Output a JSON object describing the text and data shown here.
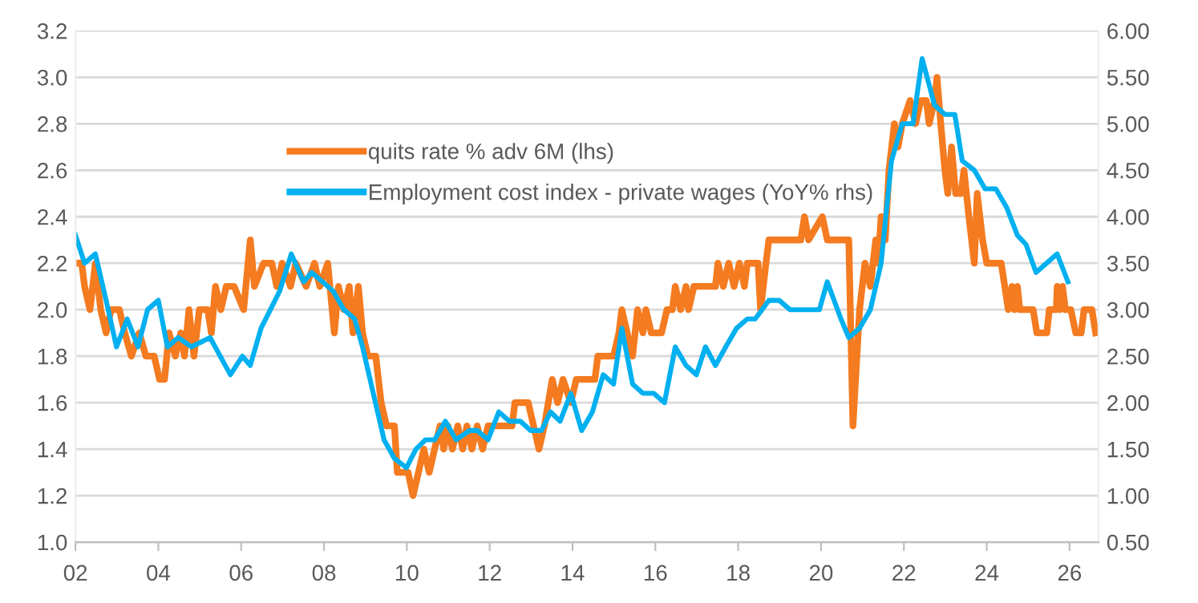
{
  "chart_data": {
    "type": "line",
    "xlim": [
      2002,
      2026.7
    ],
    "xticks": [
      {
        "value": 2002,
        "label": "02"
      },
      {
        "value": 2004,
        "label": "04"
      },
      {
        "value": 2006,
        "label": "06"
      },
      {
        "value": 2008,
        "label": "08"
      },
      {
        "value": 2010,
        "label": "10"
      },
      {
        "value": 2012,
        "label": "12"
      },
      {
        "value": 2014,
        "label": "14"
      },
      {
        "value": 2016,
        "label": "16"
      },
      {
        "value": 2018,
        "label": "18"
      },
      {
        "value": 2020,
        "label": "20"
      },
      {
        "value": 2022,
        "label": "22"
      },
      {
        "value": 2024,
        "label": "24"
      },
      {
        "value": 2026,
        "label": "26"
      }
    ],
    "ylim": [
      1.0,
      3.2
    ],
    "yticks": [
      {
        "value": 1.0,
        "label": "1.0"
      },
      1.2,
      1.4,
      1.6,
      1.8,
      {
        "value": 2.0,
        "label": "2.0"
      },
      2.2,
      2.4,
      2.6,
      2.8,
      {
        "value": 3.0,
        "label": "3.0"
      },
      3.2
    ],
    "y2lim": [
      0.5,
      6.0
    ],
    "y2ticks": [
      {
        "value": 0.5,
        "label": "0.50"
      },
      {
        "value": 1.0,
        "label": "1.00"
      },
      {
        "value": 1.5,
        "label": "1.50"
      },
      {
        "value": 2.0,
        "label": "2.00"
      },
      {
        "value": 2.5,
        "label": "2.50"
      },
      {
        "value": 3.0,
        "label": "3.00"
      },
      {
        "value": 3.5,
        "label": "3.50"
      },
      {
        "value": 4.0,
        "label": "4.00"
      },
      {
        "value": 4.5,
        "label": "4.50"
      },
      {
        "value": 5.0,
        "label": "5.00"
      },
      {
        "value": 5.5,
        "label": "5.50"
      },
      {
        "value": 6.0,
        "label": "6.00"
      }
    ],
    "grid": "y",
    "legend": "top",
    "series": [
      {
        "name": "quits rate % adv 6M (lhs)",
        "color": "#f47b20",
        "x": [
          2002.0,
          2002.15,
          2002.22,
          2002.35,
          2002.48,
          2002.61,
          2002.74,
          2002.86,
          2003.06,
          2003.19,
          2003.35,
          2003.54,
          2003.7,
          2003.9,
          2004.03,
          2004.15,
          2004.26,
          2004.41,
          2004.54,
          2004.63,
          2004.74,
          2004.86,
          2004.99,
          2005.19,
          2005.28,
          2005.38,
          2005.51,
          2005.64,
          2005.83,
          2006.06,
          2006.22,
          2006.32,
          2006.54,
          2006.74,
          2006.86,
          2006.99,
          2007.19,
          2007.32,
          2007.57,
          2007.77,
          2007.9,
          2008.09,
          2008.25,
          2008.35,
          2008.48,
          2008.61,
          2008.7,
          2008.83,
          2008.93,
          2009.06,
          2009.25,
          2009.38,
          2009.51,
          2009.7,
          2009.77,
          2010.03,
          2010.15,
          2010.28,
          2010.41,
          2010.54,
          2010.67,
          2010.8,
          2010.89,
          2010.99,
          2011.1,
          2011.23,
          2011.35,
          2011.45,
          2011.57,
          2011.7,
          2011.83,
          2011.96,
          2012.54,
          2012.61,
          2012.93,
          2013.06,
          2013.19,
          2013.32,
          2013.51,
          2013.64,
          2013.77,
          2013.96,
          2014.09,
          2014.54,
          2014.61,
          2014.86,
          2014.99,
          2015.12,
          2015.19,
          2015.45,
          2015.57,
          2015.7,
          2015.77,
          2015.9,
          2016.15,
          2016.28,
          2016.41,
          2016.48,
          2016.61,
          2016.74,
          2016.8,
          2016.93,
          2017.45,
          2017.51,
          2017.64,
          2017.77,
          2017.9,
          2018.03,
          2018.15,
          2018.22,
          2018.48,
          2018.54,
          2018.67,
          2018.74,
          2019.51,
          2019.6,
          2019.7,
          2020.03,
          2020.15,
          2020.67,
          2020.77,
          2020.93,
          2021.06,
          2021.19,
          2021.32,
          2021.38,
          2021.45,
          2021.55,
          2021.64,
          2021.77,
          2021.86,
          2021.96,
          2022.15,
          2022.28,
          2022.41,
          2022.54,
          2022.61,
          2022.74,
          2022.8,
          2022.89,
          2022.99,
          2023.06,
          2023.15,
          2023.25,
          2023.38,
          2023.45,
          2023.57,
          2023.7,
          2023.77,
          2023.9,
          2024.0,
          2024.35,
          2024.52,
          2024.61,
          2024.67,
          2024.74,
          2024.8,
          2025.12,
          2025.21,
          2025.45,
          2025.51,
          2025.68,
          2025.7,
          2025.77,
          2025.83,
          2025.9,
          2026.03,
          2026.15,
          2026.28,
          2026.35,
          2026.54,
          2026.63
        ],
        "values": [
          2.2,
          2.2,
          2.1,
          2.0,
          2.2,
          2.0,
          1.9,
          2.0,
          2.0,
          1.9,
          1.8,
          1.9,
          1.8,
          1.8,
          1.7,
          1.7,
          1.9,
          1.8,
          1.9,
          1.8,
          2.0,
          1.8,
          2.0,
          2.0,
          1.9,
          2.1,
          2.0,
          2.1,
          2.1,
          2.0,
          2.3,
          2.1,
          2.2,
          2.2,
          2.1,
          2.2,
          2.1,
          2.2,
          2.1,
          2.2,
          2.1,
          2.2,
          1.9,
          2.1,
          2.0,
          2.1,
          1.9,
          2.1,
          1.9,
          1.8,
          1.8,
          1.6,
          1.5,
          1.5,
          1.3,
          1.3,
          1.2,
          1.3,
          1.4,
          1.3,
          1.4,
          1.5,
          1.4,
          1.5,
          1.4,
          1.5,
          1.4,
          1.5,
          1.4,
          1.5,
          1.4,
          1.5,
          1.5,
          1.6,
          1.6,
          1.5,
          1.4,
          1.5,
          1.7,
          1.6,
          1.7,
          1.6,
          1.7,
          1.7,
          1.8,
          1.8,
          1.8,
          1.9,
          2.0,
          1.8,
          2.0,
          1.9,
          2.0,
          1.9,
          1.9,
          2.0,
          2.0,
          2.1,
          2.0,
          2.1,
          2.0,
          2.1,
          2.1,
          2.2,
          2.1,
          2.2,
          2.1,
          2.2,
          2.1,
          2.2,
          2.2,
          2.0,
          2.2,
          2.3,
          2.3,
          2.4,
          2.3,
          2.4,
          2.3,
          2.3,
          1.5,
          2.0,
          2.2,
          2.1,
          2.3,
          2.2,
          2.4,
          2.3,
          2.6,
          2.8,
          2.7,
          2.8,
          2.9,
          2.8,
          2.9,
          2.9,
          2.8,
          2.9,
          3.0,
          2.8,
          2.6,
          2.5,
          2.7,
          2.5,
          2.5,
          2.6,
          2.4,
          2.2,
          2.5,
          2.3,
          2.2,
          2.2,
          2.0,
          2.1,
          2.0,
          2.1,
          2.0,
          2.0,
          1.9,
          1.9,
          2.0,
          2.0,
          2.1,
          2.0,
          2.1,
          2.0,
          2.0,
          1.9,
          1.9,
          2.0,
          2.0,
          1.9
        ]
      },
      {
        "name": "Employment cost index - private wages (YoY% rhs)",
        "color": "#00b0f0",
        "axis": "y2",
        "x": [
          2002.0,
          2002.22,
          2002.48,
          2002.74,
          2002.99,
          2003.25,
          2003.51,
          2003.74,
          2004.0,
          2004.22,
          2004.48,
          2004.8,
          2005.25,
          2005.74,
          2006.03,
          2006.22,
          2006.48,
          2006.93,
          2007.21,
          2007.51,
          2007.7,
          2007.96,
          2008.22,
          2008.48,
          2008.74,
          2008.93,
          2009.19,
          2009.45,
          2009.7,
          2009.99,
          2010.22,
          2010.45,
          2010.67,
          2010.93,
          2011.19,
          2011.51,
          2011.7,
          2011.96,
          2012.22,
          2012.48,
          2012.74,
          2012.99,
          2013.25,
          2013.47,
          2013.7,
          2013.96,
          2014.22,
          2014.48,
          2014.74,
          2014.99,
          2015.19,
          2015.45,
          2015.7,
          2015.96,
          2016.22,
          2016.48,
          2016.74,
          2016.99,
          2017.21,
          2017.45,
          2017.7,
          2017.96,
          2018.22,
          2018.41,
          2018.74,
          2018.99,
          2019.25,
          2019.96,
          2020.15,
          2020.48,
          2020.67,
          2020.93,
          2021.19,
          2021.45,
          2021.7,
          2021.96,
          2022.22,
          2022.44,
          2022.74,
          2022.99,
          2023.23,
          2023.41,
          2023.7,
          2023.96,
          2024.22,
          2024.48,
          2024.74,
          2024.95,
          2025.19,
          2025.7,
          2025.96
        ],
        "values": [
          3.8,
          3.5,
          3.6,
          3.1,
          2.6,
          2.9,
          2.6,
          3.0,
          3.1,
          2.6,
          2.7,
          2.6,
          2.7,
          2.3,
          2.5,
          2.4,
          2.8,
          3.2,
          3.6,
          3.3,
          3.4,
          3.3,
          3.2,
          3.0,
          2.9,
          2.6,
          2.1,
          1.6,
          1.4,
          1.3,
          1.5,
          1.6,
          1.6,
          1.8,
          1.6,
          1.7,
          1.7,
          1.6,
          1.9,
          1.8,
          1.8,
          1.7,
          1.7,
          1.9,
          1.8,
          2.1,
          1.7,
          1.9,
          2.3,
          2.2,
          2.8,
          2.2,
          2.1,
          2.1,
          2.0,
          2.6,
          2.4,
          2.3,
          2.6,
          2.4,
          2.6,
          2.8,
          2.9,
          2.9,
          3.1,
          3.1,
          3.0,
          3.0,
          3.3,
          2.9,
          2.7,
          2.8,
          3.0,
          3.5,
          4.6,
          5.0,
          5.0,
          5.7,
          5.2,
          5.1,
          5.1,
          4.6,
          4.5,
          4.3,
          4.3,
          4.1,
          3.8,
          3.7,
          3.4,
          3.6,
          3.3
        ]
      }
    ]
  }
}
